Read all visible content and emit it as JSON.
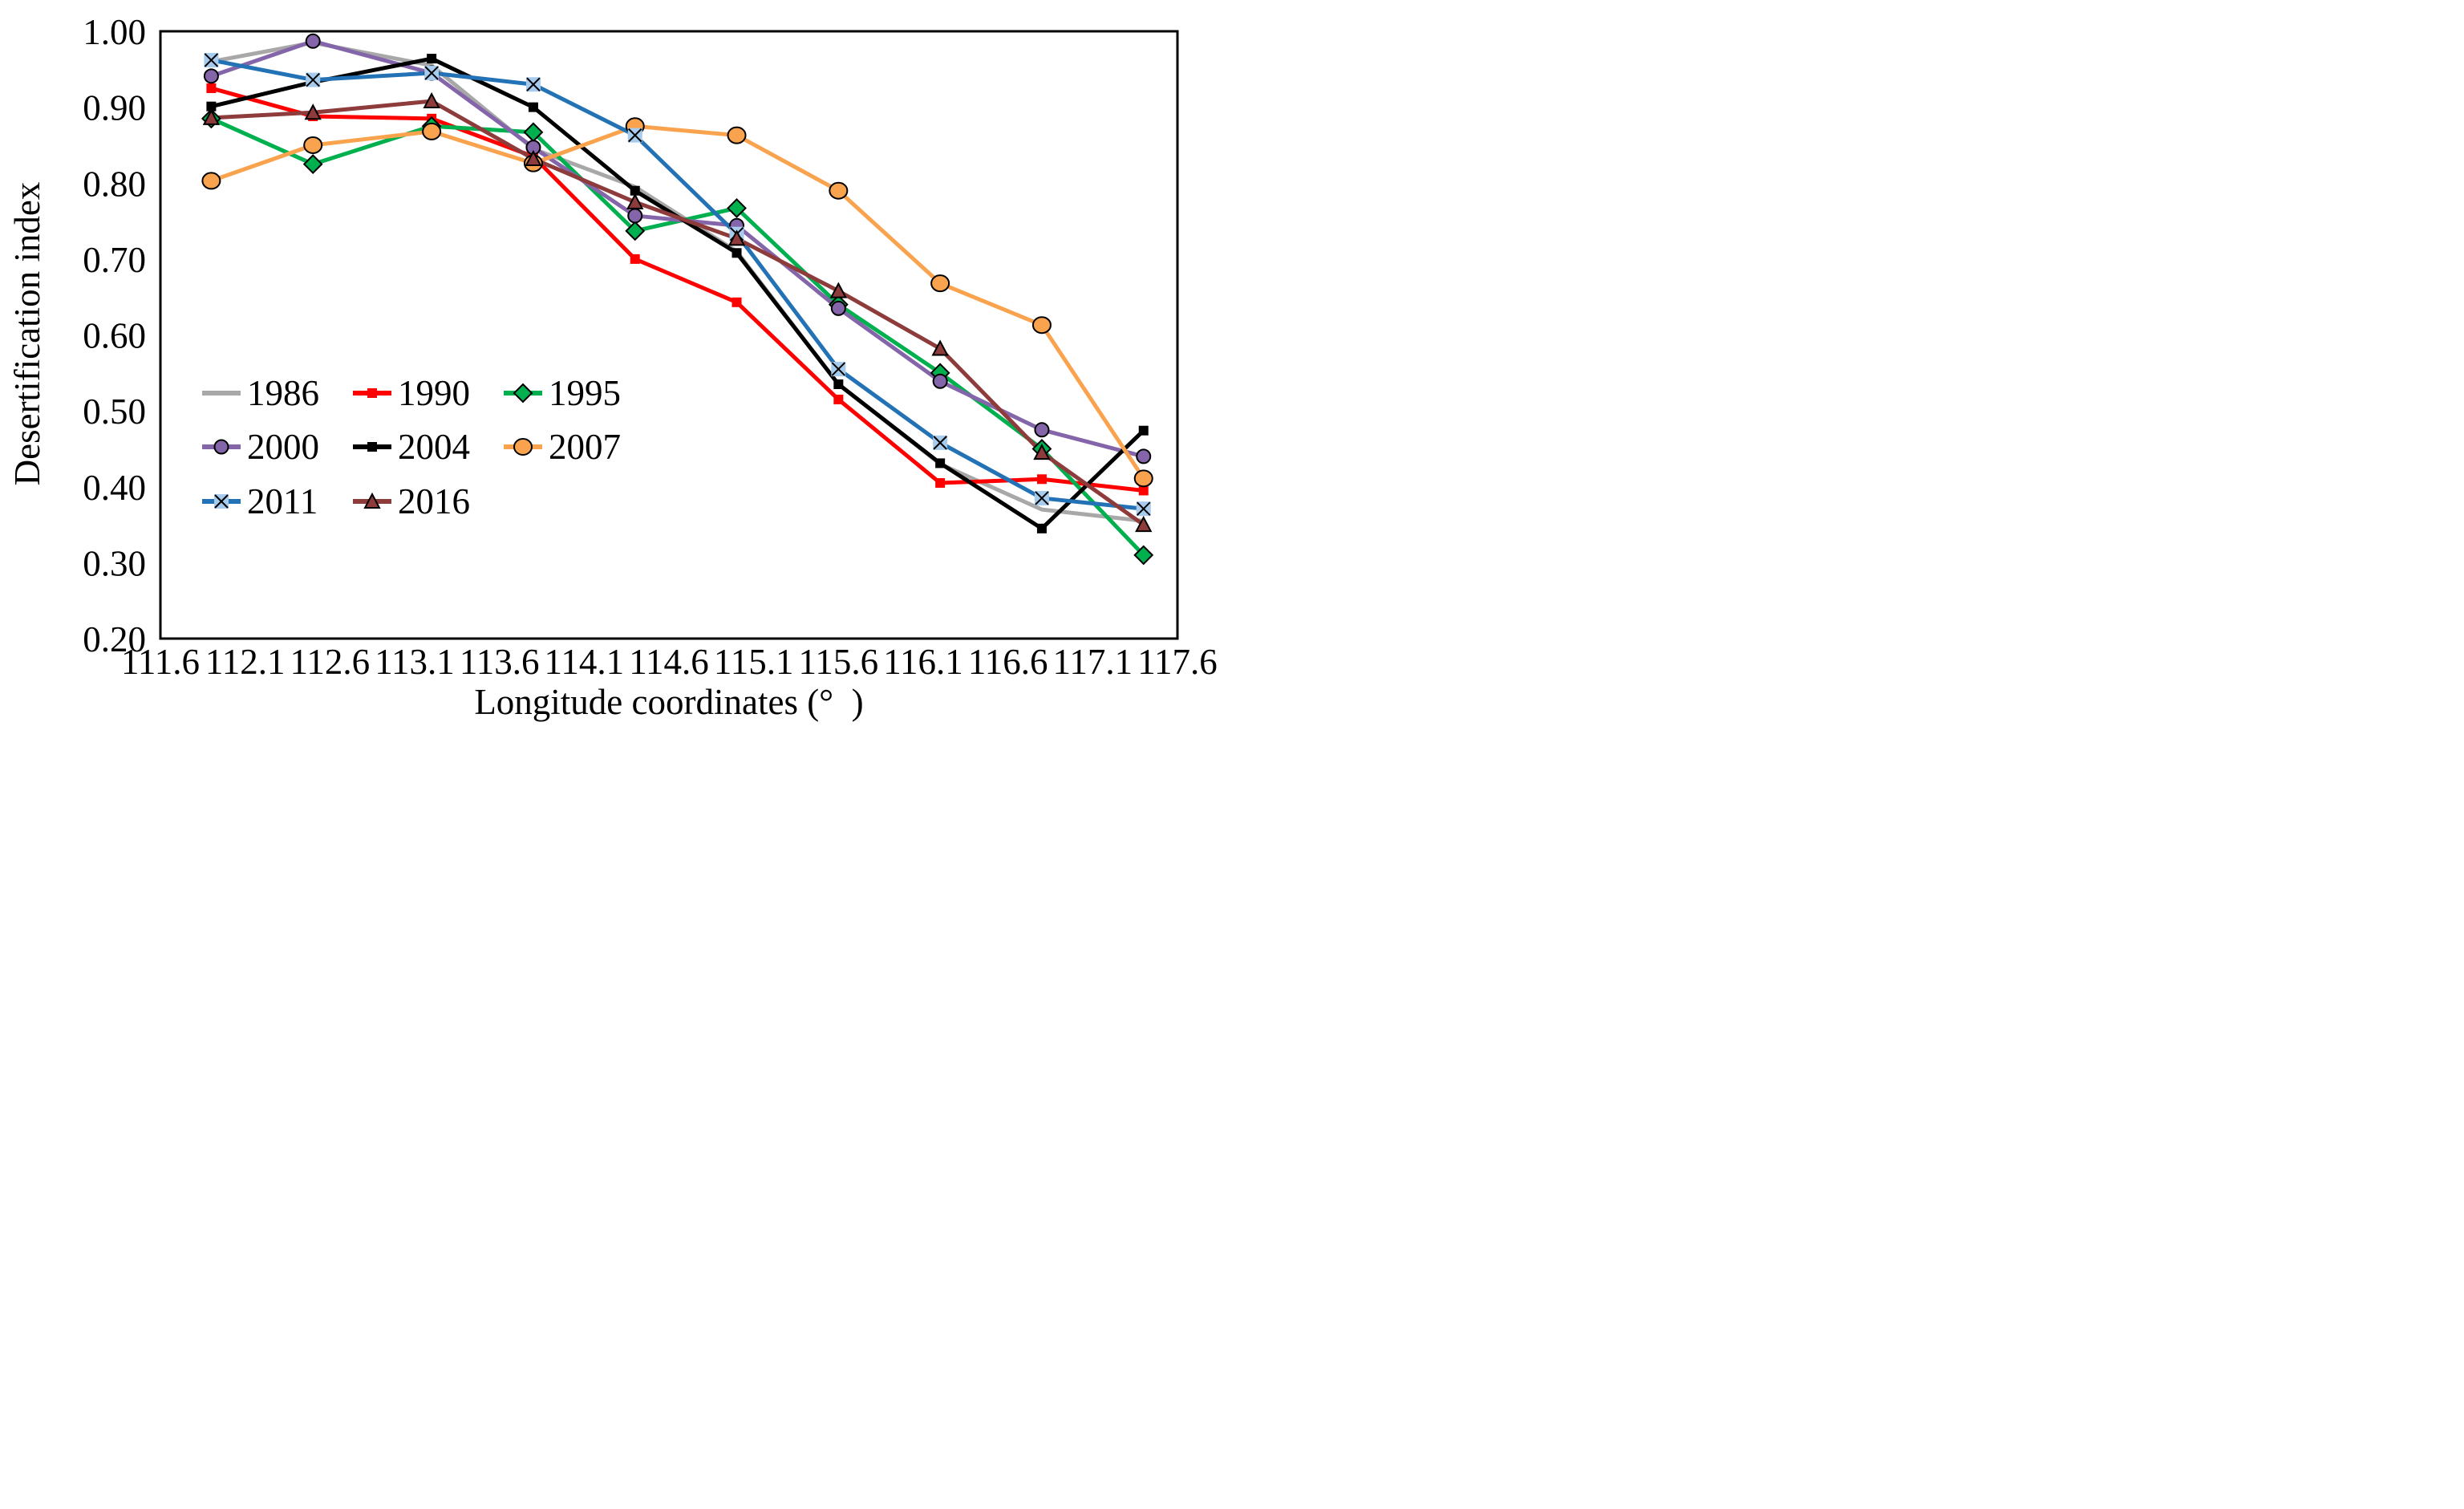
{
  "chart_data": {
    "type": "line",
    "title": "",
    "xlabel": "Longitude coordinates (° )",
    "ylabel": "Desertification index",
    "xlim": [
      111.6,
      117.6
    ],
    "ylim": [
      0.2,
      1.0
    ],
    "grid": false,
    "legend_position": "inside-left-lower",
    "x_tick_labels": [
      "111.6",
      "112.1",
      "112.6",
      "113.1",
      "113.6",
      "114.1",
      "114.6",
      "115.1",
      "115.6",
      "116.1",
      "116.6",
      "117.1",
      "117.6"
    ],
    "y_tick_labels": [
      "0.20",
      "0.30",
      "0.40",
      "0.50",
      "0.60",
      "0.70",
      "0.80",
      "0.90",
      "1.00"
    ],
    "x": [
      111.9,
      112.5,
      113.2,
      113.8,
      114.4,
      115.0,
      115.6,
      116.2,
      116.8,
      117.4
    ],
    "series": [
      {
        "name": "1986",
        "color": "#a8a8a8",
        "marker": "none",
        "marker_color": "#a8a8a8",
        "values": [
          0.96,
          0.985,
          0.955,
          0.845,
          0.795,
          0.71,
          0.535,
          0.43,
          0.37,
          0.355
        ]
      },
      {
        "name": "1990",
        "color": "#fe0000",
        "marker": "square-small",
        "marker_color": "#fe0000",
        "values": [
          0.925,
          0.888,
          0.885,
          0.835,
          0.7,
          0.643,
          0.515,
          0.405,
          0.41,
          0.395
        ]
      },
      {
        "name": "1995",
        "color": "#00b04f",
        "marker": "diamond",
        "marker_color": "#00b04f",
        "values": [
          0.885,
          0.825,
          0.875,
          0.867,
          0.737,
          0.767,
          0.64,
          0.55,
          0.45,
          0.31
        ]
      },
      {
        "name": "2000",
        "color": "#8465a9",
        "marker": "circle",
        "marker_color": "#8465a9",
        "values": [
          0.941,
          0.987,
          0.945,
          0.847,
          0.757,
          0.744,
          0.635,
          0.539,
          0.475,
          0.44
        ]
      },
      {
        "name": "2004",
        "color": "#000000",
        "marker": "square-small",
        "marker_color": "#000000",
        "values": [
          0.901,
          0.933,
          0.964,
          0.9,
          0.79,
          0.708,
          0.535,
          0.431,
          0.345,
          0.474
        ]
      },
      {
        "name": "2007",
        "color": "#faa34f",
        "marker": "circle-large",
        "marker_color": "#faa34f",
        "values": [
          0.803,
          0.85,
          0.868,
          0.826,
          0.875,
          0.863,
          0.79,
          0.668,
          0.613,
          0.411
        ]
      },
      {
        "name": "2011",
        "color": "#2272b5",
        "marker": "x-square",
        "marker_color": "#a6cbec",
        "values": [
          0.962,
          0.936,
          0.945,
          0.93,
          0.863,
          0.733,
          0.555,
          0.458,
          0.385,
          0.371
        ]
      },
      {
        "name": "2016",
        "color": "#8e3b3b",
        "marker": "triangle",
        "marker_color": "#8e3b3b",
        "values": [
          0.886,
          0.893,
          0.908,
          0.832,
          0.775,
          0.727,
          0.658,
          0.582,
          0.445,
          0.35
        ]
      }
    ],
    "legend_rows": [
      [
        "1986",
        "1990",
        "1995"
      ],
      [
        "2000",
        "2004",
        "2007"
      ],
      [
        "2011",
        "2016"
      ]
    ]
  }
}
